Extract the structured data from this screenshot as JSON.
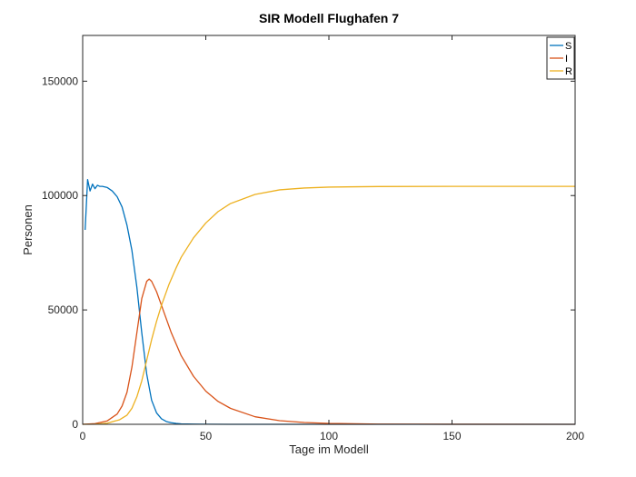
{
  "chart_data": {
    "type": "line",
    "title": "SIR Modell Flughafen 7",
    "xlabel": "Tage im Modell",
    "ylabel": "Personen",
    "xlim": [
      0,
      200
    ],
    "ylim": [
      0,
      170000
    ],
    "xticks": [
      0,
      50,
      100,
      150,
      200
    ],
    "yticks": [
      0,
      50000,
      100000,
      150000
    ],
    "grid": false,
    "legend_position": "top-right",
    "series": [
      {
        "name": "S",
        "color": "#0072BD",
        "x": [
          1,
          2,
          3,
          4,
          5,
          6,
          7,
          8,
          10,
          12,
          14,
          16,
          18,
          20,
          22,
          24,
          26,
          28,
          30,
          32,
          34,
          36,
          38,
          40,
          45,
          50,
          60,
          80,
          100,
          150,
          200
        ],
        "y": [
          85000,
          107000,
          102000,
          105000,
          103000,
          104500,
          104000,
          104000,
          103500,
          102000,
          99500,
          95000,
          87000,
          76000,
          60000,
          40000,
          22000,
          10500,
          5000,
          2400,
          1200,
          700,
          400,
          200,
          80,
          40,
          10,
          0,
          0,
          0,
          0
        ]
      },
      {
        "name": "I",
        "color": "#D95319",
        "x": [
          0,
          5,
          10,
          14,
          16,
          18,
          20,
          22,
          24,
          26,
          27,
          28,
          30,
          32,
          34,
          36,
          38,
          40,
          45,
          50,
          55,
          60,
          70,
          80,
          90,
          100,
          120,
          150,
          200
        ],
        "y": [
          0,
          300,
          1500,
          4500,
          8000,
          14000,
          25000,
          40000,
          55000,
          62500,
          63500,
          62500,
          58000,
          52000,
          46000,
          40000,
          35000,
          30000,
          21000,
          14500,
          10000,
          7000,
          3300,
          1600,
          800,
          400,
          100,
          20,
          0
        ]
      },
      {
        "name": "R",
        "color": "#EDB120",
        "x": [
          0,
          5,
          10,
          15,
          18,
          20,
          22,
          24,
          26,
          28,
          30,
          32,
          35,
          38,
          40,
          45,
          50,
          55,
          60,
          70,
          80,
          90,
          100,
          120,
          150,
          200
        ],
        "y": [
          0,
          50,
          500,
          2000,
          4000,
          7000,
          12000,
          19000,
          28000,
          37000,
          45000,
          52000,
          61000,
          68500,
          73000,
          81500,
          88000,
          93000,
          96500,
          100500,
          102500,
          103300,
          103700,
          103950,
          104000,
          104000
        ]
      }
    ]
  }
}
